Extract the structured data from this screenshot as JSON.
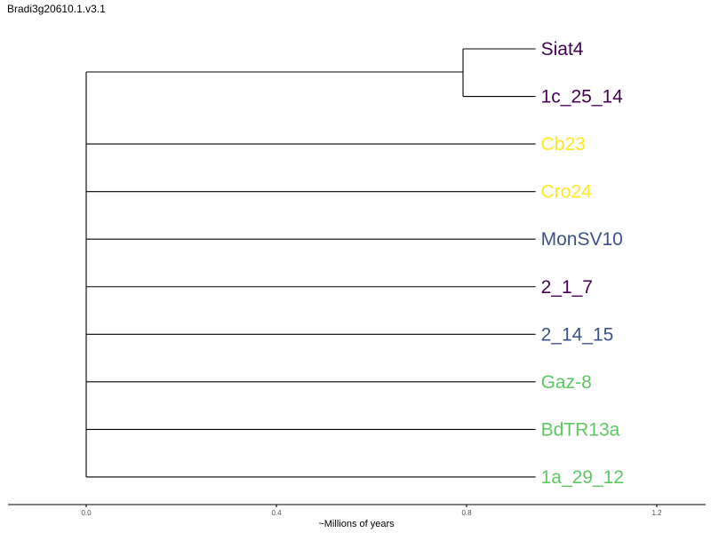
{
  "title": "Bradi3g20610.1.v3.1",
  "colors": {
    "dark_purple": "#440154",
    "yellow": "#FDE725",
    "blue": "#3B528B",
    "green": "#5DC863",
    "branch": "#000000"
  },
  "tree": {
    "tips": [
      {
        "label": "Siat4",
        "color": "#440154"
      },
      {
        "label": "1c_25_14",
        "color": "#440154"
      },
      {
        "label": "Cb23",
        "color": "#FDE725"
      },
      {
        "label": "Cro24",
        "color": "#FDE725"
      },
      {
        "label": "MonSV10",
        "color": "#3B528B"
      },
      {
        "label": "2_1_7",
        "color": "#440154"
      },
      {
        "label": "2_14_15",
        "color": "#3B528B"
      },
      {
        "label": "Gaz-8",
        "color": "#5DC863"
      },
      {
        "label": "BdTR13a",
        "color": "#5DC863"
      },
      {
        "label": "1a_29_12",
        "color": "#5DC863"
      }
    ],
    "clade_node_age": 0.8,
    "tip_age": 0.96
  },
  "axis": {
    "title": "~Millions of years",
    "ticks": [
      "0.0",
      "0.4",
      "0.8",
      "1.2"
    ],
    "tick_values": [
      0.0,
      0.4,
      0.8,
      1.2
    ]
  }
}
